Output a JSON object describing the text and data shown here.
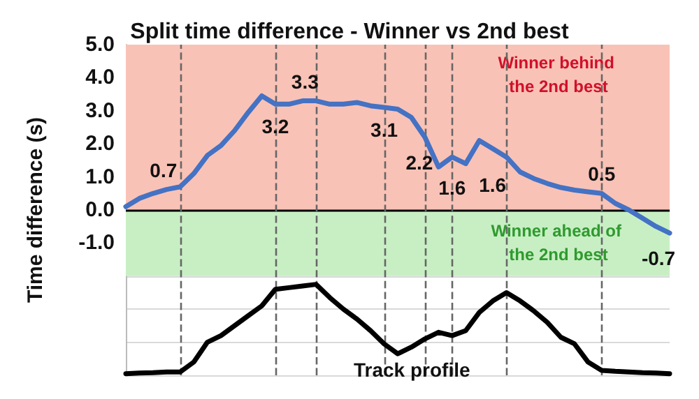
{
  "chart_data": {
    "type": "line",
    "title": "Split time difference - Winner vs 2nd best",
    "ylabel": "Time difference (s)",
    "categories": [
      null,
      null,
      null,
      null,
      null,
      null,
      null,
      null,
      null,
      null,
      null,
      null,
      null,
      null,
      null,
      null,
      null,
      null,
      null,
      null,
      null,
      null,
      null,
      null,
      null,
      null,
      null,
      null,
      null,
      null,
      null,
      null,
      null,
      null,
      null,
      null,
      null,
      null,
      null,
      null,
      null
    ],
    "ylim": [
      -5,
      5
    ],
    "yticks": [
      {
        "value": -5,
        "label": null
      },
      {
        "value": -4,
        "label": null
      },
      {
        "value": -3,
        "label": null
      },
      {
        "value": -2,
        "label": null
      },
      {
        "value": -1,
        "label": "-1.0"
      },
      {
        "value": 0,
        "label": "0.0"
      },
      {
        "value": 1,
        "label": "1.0"
      },
      {
        "value": 2,
        "label": "2.0"
      },
      {
        "value": 3,
        "label": "3.0"
      },
      {
        "value": 4,
        "label": "4.0"
      },
      {
        "value": 5,
        "label": "5.0"
      }
    ],
    "grid": true,
    "legend": false,
    "marker": "none",
    "line_style": "solid",
    "series": [
      {
        "color": "#4472c4",
        "values": [
          0.1,
          0.35,
          0.5,
          0.62,
          0.7,
          1.1,
          1.65,
          1.95,
          2.4,
          2.95,
          3.45,
          3.2,
          3.2,
          3.3,
          3.3,
          3.2,
          3.2,
          3.25,
          3.15,
          3.1,
          3.05,
          2.8,
          2.2,
          1.3,
          1.6,
          1.4,
          2.1,
          1.85,
          1.6,
          1.15,
          0.95,
          0.8,
          0.68,
          0.6,
          0.55,
          0.5,
          0.2,
          0.0,
          -0.25,
          -0.5,
          -0.7
        ],
        "value_labels": [
          null,
          null,
          null,
          null,
          "0.7",
          null,
          null,
          null,
          null,
          null,
          null,
          "3.2",
          null,
          null,
          "3.3",
          null,
          null,
          null,
          null,
          "3.1",
          null,
          null,
          "2.2",
          null,
          "1.6",
          null,
          null,
          null,
          "1.6",
          null,
          null,
          null,
          null,
          null,
          null,
          "0.5",
          null,
          null,
          null,
          null,
          "-0.7"
        ]
      },
      {
        "name": "Track profile",
        "color": "#000000",
        "values": [
          -4.95,
          -4.93,
          -4.92,
          -4.9,
          -4.9,
          -4.6,
          -4.0,
          -3.8,
          -3.5,
          -3.2,
          -2.9,
          -2.4,
          -2.35,
          -2.3,
          -2.25,
          -2.65,
          -3.0,
          -3.3,
          -3.65,
          -4.05,
          -4.35,
          -4.15,
          -3.9,
          -3.7,
          -3.8,
          -3.65,
          -3.1,
          -2.75,
          -2.5,
          -2.75,
          -3.05,
          -3.4,
          -3.85,
          -4.05,
          -4.6,
          -4.85,
          -4.88,
          -4.9,
          -4.92,
          -4.93,
          -4.95
        ]
      }
    ],
    "bands": [
      {
        "axis": "y",
        "from": 0,
        "to": 5,
        "label": "Winner behind the 2nd best",
        "color": "#f9c2b6"
      },
      {
        "axis": "y",
        "from": -2,
        "to": 0,
        "label": "Winner ahead of the 2nd best",
        "color": "#c8efc4"
      }
    ],
    "ref_lines": [
      {
        "axis": "y",
        "value": 0,
        "color": "#000000",
        "line_style": "solid"
      }
    ]
  }
}
